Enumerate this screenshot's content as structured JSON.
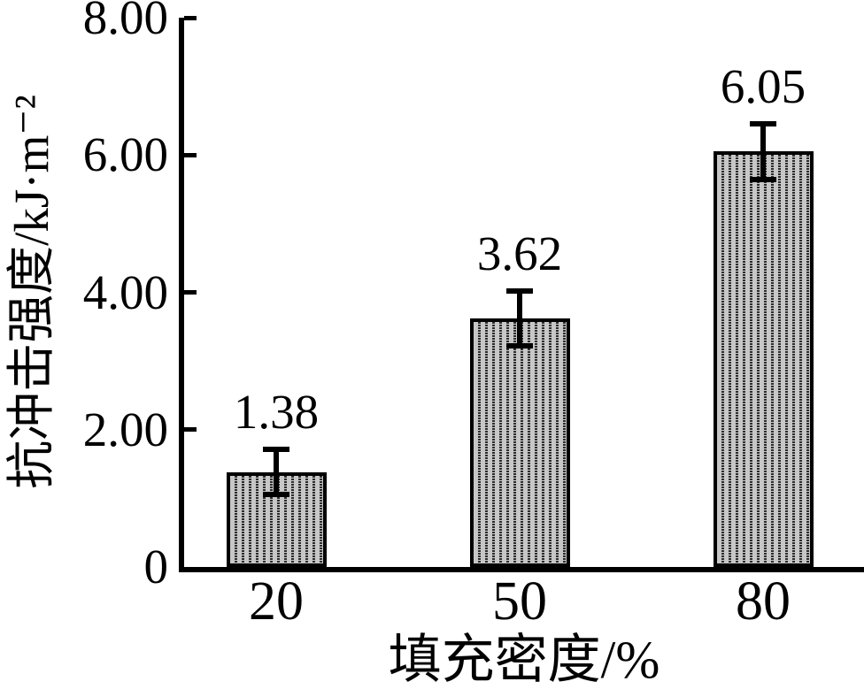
{
  "figure": {
    "background": "#ffffff",
    "text_color": "#000000"
  },
  "chart_data": {
    "type": "bar",
    "title": "",
    "categories": [
      "20",
      "50",
      "80"
    ],
    "values": [
      1.38,
      3.62,
      6.05
    ],
    "value_labels": [
      "1.38",
      "3.62",
      "6.05"
    ],
    "errors": [
      0.33,
      0.4,
      0.41
    ],
    "xlabel": "填充密度/%",
    "ylabel": "抗冲击强度/kJ·m⁻²",
    "ylim": [
      0,
      8
    ],
    "yticks": [
      {
        "value": 0,
        "label": "0"
      },
      {
        "value": 2,
        "label": "2.00"
      },
      {
        "value": 4,
        "label": "4.00"
      },
      {
        "value": 6,
        "label": "6.00"
      },
      {
        "value": 8,
        "label": "8.00"
      }
    ],
    "grid": false,
    "legend": false,
    "error_bars": true,
    "bar_fill": "#c7c7c7",
    "bar_hatch": "vertical-dotted",
    "axis_color": "#000000"
  }
}
